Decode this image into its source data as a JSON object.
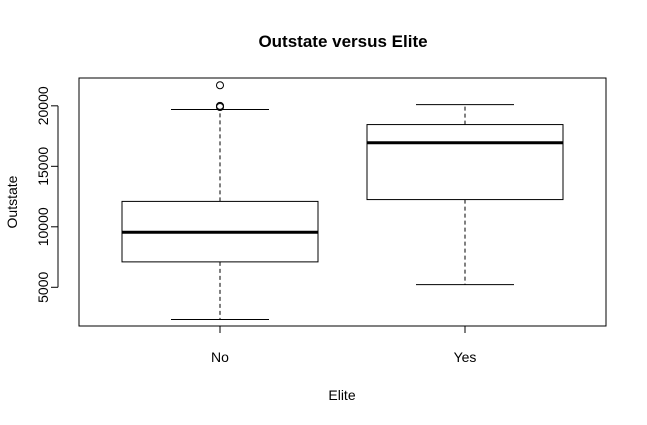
{
  "chart_data": {
    "type": "boxplot",
    "title": "Outstate versus Elite",
    "xlabel": "Elite",
    "ylabel": "Outstate",
    "ylim": [
      1800,
      22300
    ],
    "yticks": [
      5000,
      10000,
      15000,
      20000
    ],
    "grid": false,
    "legend": "none",
    "colors": {
      "box_fill": "#ffffff",
      "stroke": "#000000"
    },
    "groups": [
      {
        "category": "No",
        "whisker_low": 2340,
        "q1": 7100,
        "median": 9550,
        "q3": 12100,
        "whisker_high": 19700,
        "outliers": [
          19900,
          20000,
          21700
        ]
      },
      {
        "category": "Yes",
        "whisker_low": 5220,
        "q1": 12250,
        "median": 16950,
        "q3": 18450,
        "whisker_high": 20100,
        "outliers": []
      }
    ]
  }
}
